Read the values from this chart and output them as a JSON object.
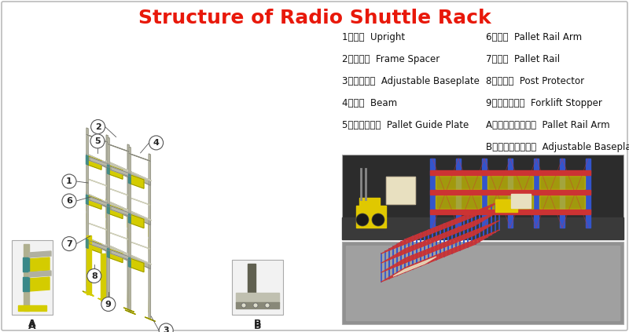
{
  "title": "Structure of Radio Shuttle Rack",
  "title_color": "#E8180A",
  "title_fontsize": 18,
  "background_color": "#FFFFFF",
  "legend_items_col1": [
    "1、立柱  Upright",
    "2、连接杆  Frame Spacer",
    "3、可调底脚  Adjustable Baseplate",
    "4、横梁  Beam",
    "5、托盘导向板  Pallet Guide Plate"
  ],
  "legend_items_col2": [
    "6、牛腥  Pallet Rail Arm",
    "7、导轨  Pallet Rail",
    "8、防撞杆  Post Protector",
    "9、叉车定位板  Forklift Stopper",
    "A、牛腥部件放大图  Pallet Rail Arm",
    "B、底脚部件放大图  Adjustable Baseplate"
  ],
  "border_color": "#BBBBBB",
  "text_fontsize": 8.5,
  "label_fontsize": 9,
  "gray": "#C8C8B0",
  "yellow": "#D4CC00",
  "dark_gray": "#888880",
  "teal": "#3A8888",
  "label_bg": "#FFFFFF",
  "label_edge": "#555555"
}
